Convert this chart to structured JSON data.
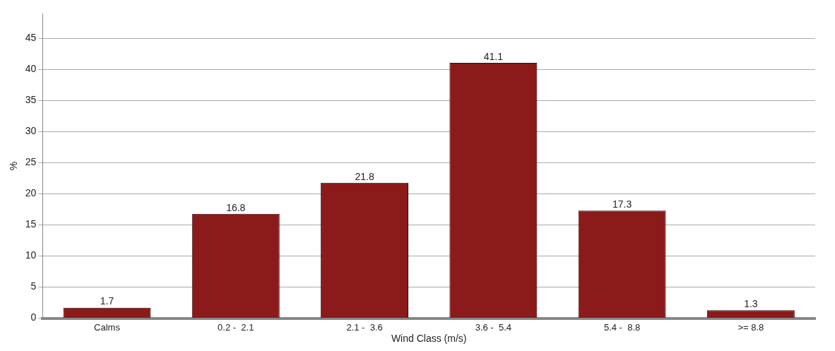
{
  "chart_data": {
    "type": "bar",
    "xlabel": "Wind Class (m/s)",
    "ylabel": "%",
    "categories": [
      "Calms",
      "0.2 -  2.1",
      "2.1 -  3.6",
      "3.6 -  5.4",
      "5.4 -  8.8",
      ">= 8.8"
    ],
    "values": [
      1.7,
      16.8,
      21.8,
      41.1,
      17.3,
      1.3
    ],
    "color": "#8b1a1a",
    "ylim": [
      0,
      49
    ],
    "yticks": [
      0,
      5,
      10,
      15,
      20,
      25,
      30,
      35,
      40,
      45
    ],
    "grid": "y",
    "legend": false,
    "data_labels": true
  }
}
